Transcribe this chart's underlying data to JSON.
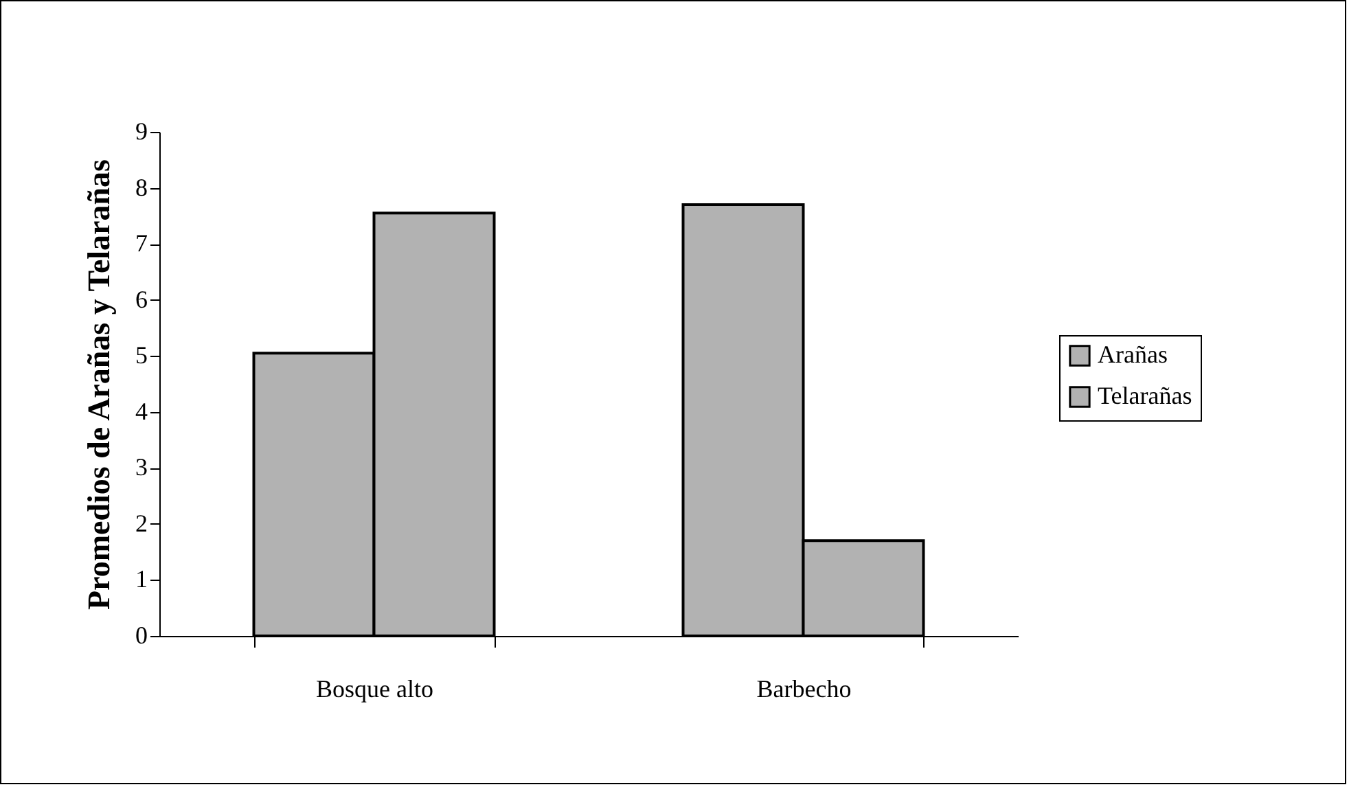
{
  "chart_data": {
    "type": "bar",
    "ylabel": "Promedios de Arañas y Telarañas",
    "categories": [
      "Bosque alto",
      "Barbecho"
    ],
    "series": [
      {
        "name": "Arañas",
        "color": "#b2b2b2",
        "values": [
          5.05,
          7.7
        ]
      },
      {
        "name": "Telarañas",
        "color": "#b2b2b2",
        "values": [
          7.55,
          1.7
        ]
      }
    ],
    "ylim": [
      0,
      9
    ],
    "yticks": [
      0,
      1,
      2,
      3,
      4,
      5,
      6,
      7,
      8,
      9
    ],
    "grid": false,
    "legend": "right"
  }
}
